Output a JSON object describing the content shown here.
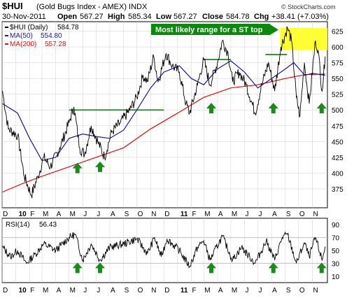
{
  "chart_data": [
    {
      "type": "line",
      "panel": "price",
      "symbol": "$HUI",
      "title": "(Gold Bugs Index - AMEX) INDX",
      "watermark": "© StockCharts.com",
      "date": "30-Nov-2011",
      "quote": {
        "open_label": "Open",
        "open": "567.27",
        "high_label": "High",
        "high": "585.34",
        "low_label": "Low",
        "low": "567.27",
        "close_label": "Close",
        "close": "584.78",
        "chg_label": "Chg",
        "chg": "+38.41 (+7.03%)"
      },
      "legend": [
        {
          "label": "$HUI (Daily)",
          "value": "584.78",
          "color": "#000000"
        },
        {
          "label": "MA(50)",
          "value": "554.80",
          "color": "#1a1a9a"
        },
        {
          "label": "MA(200)",
          "value": "557.28",
          "color": "#e01010"
        }
      ],
      "annotation": "Most likely range for a ST top",
      "annotation_range": [
        595,
        630
      ],
      "ylim": [
        345,
        640
      ],
      "y_ticks": [
        375,
        400,
        425,
        450,
        475,
        500,
        525,
        550,
        575,
        600,
        625
      ],
      "x_tick_labels": [
        "D",
        "10",
        "F",
        "M",
        "A",
        "M",
        "J",
        "J",
        "A",
        "S",
        "O",
        "N",
        "D",
        "11",
        "F",
        "M",
        "A",
        "M",
        "J",
        "J",
        "A",
        "S",
        "O",
        "N"
      ],
      "x_range": [
        "2009-12-01",
        "2011-12-05"
      ],
      "key_points": [
        {
          "x": "2009-12-02",
          "y": 530
        },
        {
          "x": "2009-12-15",
          "y": 470
        },
        {
          "x": "2010-01-05",
          "y": 460
        },
        {
          "x": "2010-01-20",
          "y": 395
        },
        {
          "x": "2010-02-05",
          "y": 365
        },
        {
          "x": "2010-02-20",
          "y": 395
        },
        {
          "x": "2010-03-05",
          "y": 425
        },
        {
          "x": "2010-03-20",
          "y": 410
        },
        {
          "x": "2010-04-10",
          "y": 440
        },
        {
          "x": "2010-05-01",
          "y": 480
        },
        {
          "x": "2010-05-12",
          "y": 505
        },
        {
          "x": "2010-05-25",
          "y": 440
        },
        {
          "x": "2010-06-05",
          "y": 430
        },
        {
          "x": "2010-06-20",
          "y": 475
        },
        {
          "x": "2010-07-05",
          "y": 450
        },
        {
          "x": "2010-07-20",
          "y": 425
        },
        {
          "x": "2010-08-05",
          "y": 465
        },
        {
          "x": "2010-08-25",
          "y": 480
        },
        {
          "x": "2010-09-15",
          "y": 500
        },
        {
          "x": "2010-10-01",
          "y": 520
        },
        {
          "x": "2010-10-15",
          "y": 555
        },
        {
          "x": "2010-10-25",
          "y": 545
        },
        {
          "x": "2010-11-08",
          "y": 585
        },
        {
          "x": "2010-11-18",
          "y": 545
        },
        {
          "x": "2010-12-06",
          "y": 590
        },
        {
          "x": "2010-12-20",
          "y": 570
        },
        {
          "x": "2011-01-05",
          "y": 560
        },
        {
          "x": "2011-01-20",
          "y": 510
        },
        {
          "x": "2011-01-28",
          "y": 495
        },
        {
          "x": "2011-02-15",
          "y": 540
        },
        {
          "x": "2011-03-01",
          "y": 580
        },
        {
          "x": "2011-03-15",
          "y": 540
        },
        {
          "x": "2011-04-01",
          "y": 575
        },
        {
          "x": "2011-04-12",
          "y": 610
        },
        {
          "x": "2011-04-25",
          "y": 590
        },
        {
          "x": "2011-05-05",
          "y": 545
        },
        {
          "x": "2011-05-20",
          "y": 560
        },
        {
          "x": "2011-06-05",
          "y": 540
        },
        {
          "x": "2011-06-25",
          "y": 495
        },
        {
          "x": "2011-07-10",
          "y": 540
        },
        {
          "x": "2011-07-25",
          "y": 575
        },
        {
          "x": "2011-08-08",
          "y": 530
        },
        {
          "x": "2011-08-22",
          "y": 600
        },
        {
          "x": "2011-09-06",
          "y": 630
        },
        {
          "x": "2011-09-15",
          "y": 610
        },
        {
          "x": "2011-09-26",
          "y": 520
        },
        {
          "x": "2011-10-04",
          "y": 490
        },
        {
          "x": "2011-10-14",
          "y": 575
        },
        {
          "x": "2011-10-25",
          "y": 510
        },
        {
          "x": "2011-11-08",
          "y": 610
        },
        {
          "x": "2011-11-14",
          "y": 595
        },
        {
          "x": "2011-11-23",
          "y": 530
        },
        {
          "x": "2011-11-30",
          "y": 585
        }
      ],
      "ma50_points": [
        {
          "x": "2009-12-02",
          "y": 510
        },
        {
          "x": "2010-01-05",
          "y": 495
        },
        {
          "x": "2010-02-01",
          "y": 455
        },
        {
          "x": "2010-03-01",
          "y": 420
        },
        {
          "x": "2010-04-01",
          "y": 425
        },
        {
          "x": "2010-05-01",
          "y": 455
        },
        {
          "x": "2010-06-01",
          "y": 462
        },
        {
          "x": "2010-07-01",
          "y": 458
        },
        {
          "x": "2010-08-01",
          "y": 455
        },
        {
          "x": "2010-09-01",
          "y": 468
        },
        {
          "x": "2010-10-01",
          "y": 500
        },
        {
          "x": "2010-11-01",
          "y": 535
        },
        {
          "x": "2010-12-01",
          "y": 560
        },
        {
          "x": "2011-01-05",
          "y": 570
        },
        {
          "x": "2011-02-01",
          "y": 550
        },
        {
          "x": "2011-03-01",
          "y": 540
        },
        {
          "x": "2011-04-01",
          "y": 565
        },
        {
          "x": "2011-05-01",
          "y": 578
        },
        {
          "x": "2011-06-01",
          "y": 560
        },
        {
          "x": "2011-07-01",
          "y": 535
        },
        {
          "x": "2011-08-01",
          "y": 550
        },
        {
          "x": "2011-09-01",
          "y": 565
        },
        {
          "x": "2011-09-20",
          "y": 575
        },
        {
          "x": "2011-10-15",
          "y": 555
        },
        {
          "x": "2011-11-01",
          "y": 558
        },
        {
          "x": "2011-11-30",
          "y": 555
        }
      ],
      "ma200_points": [
        {
          "x": "2009-12-02",
          "y": 370
        },
        {
          "x": "2010-01-15",
          "y": 383
        },
        {
          "x": "2010-03-01",
          "y": 395
        },
        {
          "x": "2010-05-01",
          "y": 410
        },
        {
          "x": "2010-07-01",
          "y": 425
        },
        {
          "x": "2010-09-01",
          "y": 440
        },
        {
          "x": "2010-11-01",
          "y": 470
        },
        {
          "x": "2011-01-01",
          "y": 495
        },
        {
          "x": "2011-03-01",
          "y": 520
        },
        {
          "x": "2011-05-01",
          "y": 535
        },
        {
          "x": "2011-07-01",
          "y": 540
        },
        {
          "x": "2011-09-01",
          "y": 550
        },
        {
          "x": "2011-10-15",
          "y": 556
        },
        {
          "x": "2011-11-30",
          "y": 557
        }
      ],
      "horizontal_levels": [
        {
          "from": "2010-05-01",
          "to": "2010-12-01",
          "y": 500
        },
        {
          "from": "2011-03-01",
          "to": "2011-05-01",
          "y": 580
        },
        {
          "from": "2011-07-18",
          "to": "2011-09-05",
          "y": 588
        }
      ],
      "arrows": [
        {
          "x": "2010-05-20",
          "y": 413
        },
        {
          "x": "2010-07-10",
          "y": 415
        },
        {
          "x": "2011-03-18",
          "y": 508
        },
        {
          "x": "2011-08-05",
          "y": 508
        },
        {
          "x": "2011-11-22",
          "y": 508
        }
      ]
    },
    {
      "type": "line",
      "panel": "rsi",
      "label": "RSI(14)",
      "value": "56.43",
      "ylim": [
        0,
        100
      ],
      "y_ticks": [
        10,
        30,
        50,
        70,
        90
      ],
      "ref_lines": [
        30,
        70
      ],
      "x_tick_labels": [
        "D",
        "10",
        "F",
        "M",
        "A",
        "M",
        "J",
        "J",
        "A",
        "S",
        "O",
        "N",
        "D",
        "11",
        "F",
        "M",
        "A",
        "M",
        "J",
        "J",
        "A",
        "S",
        "O",
        "N"
      ],
      "key_points": [
        {
          "x": "2009-12-02",
          "y": 55
        },
        {
          "x": "2009-12-20",
          "y": 40
        },
        {
          "x": "2010-01-05",
          "y": 50
        },
        {
          "x": "2010-01-25",
          "y": 30
        },
        {
          "x": "2010-02-15",
          "y": 45
        },
        {
          "x": "2010-03-05",
          "y": 60
        },
        {
          "x": "2010-04-01",
          "y": 50
        },
        {
          "x": "2010-05-01",
          "y": 70
        },
        {
          "x": "2010-05-15",
          "y": 75
        },
        {
          "x": "2010-06-01",
          "y": 35
        },
        {
          "x": "2010-06-20",
          "y": 60
        },
        {
          "x": "2010-07-10",
          "y": 35
        },
        {
          "x": "2010-08-01",
          "y": 55
        },
        {
          "x": "2010-09-01",
          "y": 60
        },
        {
          "x": "2010-10-01",
          "y": 68
        },
        {
          "x": "2010-10-25",
          "y": 45
        },
        {
          "x": "2010-11-10",
          "y": 70
        },
        {
          "x": "2010-11-25",
          "y": 40
        },
        {
          "x": "2010-12-08",
          "y": 68
        },
        {
          "x": "2011-01-05",
          "y": 50
        },
        {
          "x": "2011-01-28",
          "y": 25
        },
        {
          "x": "2011-02-15",
          "y": 55
        },
        {
          "x": "2011-03-01",
          "y": 65
        },
        {
          "x": "2011-03-15",
          "y": 35
        },
        {
          "x": "2011-04-12",
          "y": 72
        },
        {
          "x": "2011-05-05",
          "y": 35
        },
        {
          "x": "2011-05-25",
          "y": 55
        },
        {
          "x": "2011-06-25",
          "y": 30
        },
        {
          "x": "2011-07-20",
          "y": 65
        },
        {
          "x": "2011-08-08",
          "y": 35
        },
        {
          "x": "2011-08-25",
          "y": 70
        },
        {
          "x": "2011-09-06",
          "y": 75
        },
        {
          "x": "2011-09-26",
          "y": 30
        },
        {
          "x": "2011-10-14",
          "y": 62
        },
        {
          "x": "2011-10-25",
          "y": 40
        },
        {
          "x": "2011-11-08",
          "y": 70
        },
        {
          "x": "2011-11-23",
          "y": 35
        },
        {
          "x": "2011-11-30",
          "y": 56
        }
      ],
      "arrows": [
        {
          "x": "2010-05-20"
        },
        {
          "x": "2010-07-10"
        },
        {
          "x": "2011-03-18"
        },
        {
          "x": "2011-08-05"
        },
        {
          "x": "2011-11-22"
        }
      ]
    }
  ],
  "colors": {
    "price": "#000000",
    "ma50": "#1a1a9a",
    "ma200": "#e01010",
    "levels": "#1a8a1a",
    "arrow": "#1a8a1a",
    "annotation_bg": "#0a8a0a",
    "annotation_text": "#ffffff",
    "highlight": "#ffff33",
    "grid": "#cfcfcf",
    "rsi_ref": "#c0c0c0"
  }
}
